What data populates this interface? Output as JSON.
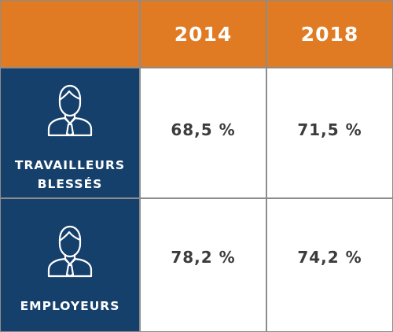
{
  "table": {
    "corner": "",
    "years": [
      "2014",
      "2018"
    ],
    "rows": [
      {
        "icon": "person-with-tie-icon",
        "label_lines": [
          "TRAVAILLEURS",
          "BLESSÉS"
        ],
        "values": [
          "68,5 %",
          "71,5 %"
        ]
      },
      {
        "icon": "person-with-tie-icon",
        "label_lines": [
          "EMPLOYEURS"
        ],
        "values": [
          "78,2 %",
          "74,2 %"
        ]
      }
    ]
  },
  "colors": {
    "header_orange": "#e07b24",
    "row_header_navy": "#16406c",
    "value_text": "#3c3c3c",
    "border": "#8c8c8c"
  }
}
